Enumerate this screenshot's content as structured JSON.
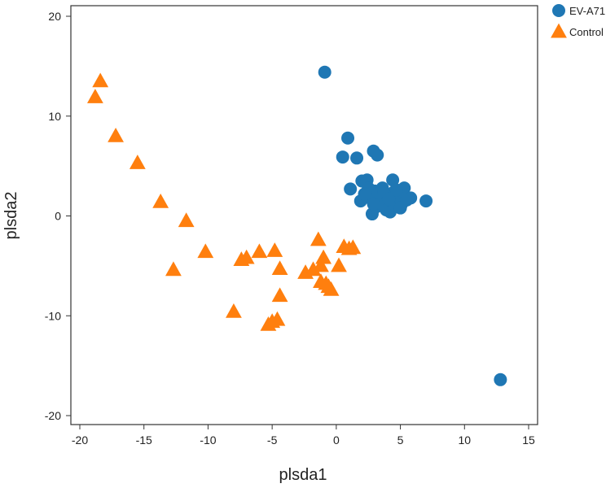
{
  "chart_data": {
    "type": "scatter",
    "xlabel": "plsda1",
    "ylabel": "plsda2",
    "xlim": [
      -20,
      15
    ],
    "ylim": [
      -20,
      20
    ],
    "xticks": [
      -20,
      -15,
      -10,
      -5,
      0,
      5,
      10,
      15
    ],
    "yticks": [
      -20,
      -10,
      0,
      10,
      20
    ],
    "grid": false,
    "legend_position": "top-right outside",
    "series": [
      {
        "name": "EV-A71",
        "marker": "circle",
        "color": "#1f77b4",
        "points": [
          [
            -0.9,
            14.4
          ],
          [
            12.8,
            -16.4
          ],
          [
            0.5,
            5.9
          ],
          [
            0.9,
            7.8
          ],
          [
            1.6,
            5.8
          ],
          [
            2.9,
            6.5
          ],
          [
            3.2,
            6.1
          ],
          [
            7.0,
            1.5
          ],
          [
            1.1,
            2.7
          ],
          [
            2.0,
            3.5
          ],
          [
            2.4,
            3.6
          ],
          [
            4.4,
            3.6
          ],
          [
            1.9,
            1.5
          ],
          [
            2.5,
            2.8
          ],
          [
            3.0,
            2.5
          ],
          [
            3.6,
            2.8
          ],
          [
            4.0,
            2.0
          ],
          [
            4.5,
            2.4
          ],
          [
            5.3,
            2.8
          ],
          [
            5.8,
            1.8
          ],
          [
            2.8,
            0.2
          ],
          [
            3.1,
            0.9
          ],
          [
            3.4,
            1.3
          ],
          [
            3.5,
            1.9
          ],
          [
            3.8,
            1.0
          ],
          [
            3.9,
            0.6
          ],
          [
            4.2,
            0.4
          ],
          [
            4.3,
            1.5
          ],
          [
            4.6,
            1.1
          ],
          [
            4.8,
            2.0
          ],
          [
            5.1,
            1.2
          ],
          [
            5.0,
            0.8
          ],
          [
            2.6,
            1.8
          ],
          [
            3.3,
            2.2
          ],
          [
            2.9,
            1.2
          ],
          [
            3.7,
            2.4
          ],
          [
            4.1,
            1.7
          ],
          [
            5.5,
            1.6
          ],
          [
            4.7,
            2.6
          ],
          [
            2.2,
            2.2
          ]
        ]
      },
      {
        "name": "Control",
        "marker": "triangle",
        "color": "#ff7f0e",
        "points": [
          [
            -18.4,
            13.5
          ],
          [
            -18.8,
            11.9
          ],
          [
            -17.2,
            8.0
          ],
          [
            -15.5,
            5.3
          ],
          [
            -13.7,
            1.4
          ],
          [
            -11.7,
            -0.5
          ],
          [
            -12.7,
            -5.4
          ],
          [
            -10.2,
            -3.6
          ],
          [
            -7.4,
            -4.4
          ],
          [
            -7.0,
            -4.2
          ],
          [
            -6.0,
            -3.6
          ],
          [
            -4.8,
            -3.5
          ],
          [
            -4.4,
            -5.3
          ],
          [
            -4.4,
            -8.0
          ],
          [
            -8.0,
            -9.6
          ],
          [
            -5.3,
            -10.9
          ],
          [
            -5.0,
            -10.6
          ],
          [
            -4.6,
            -10.4
          ],
          [
            -2.4,
            -5.7
          ],
          [
            -1.8,
            -5.4
          ],
          [
            -1.4,
            -2.4
          ],
          [
            -1.2,
            -5.0
          ],
          [
            -1.0,
            -4.2
          ],
          [
            -1.2,
            -6.6
          ],
          [
            -0.8,
            -6.8
          ],
          [
            -0.6,
            -7.1
          ],
          [
            -0.4,
            -7.4
          ],
          [
            0.2,
            -5.0
          ],
          [
            0.6,
            -3.1
          ],
          [
            1.0,
            -3.3
          ],
          [
            1.3,
            -3.2
          ]
        ]
      }
    ]
  }
}
